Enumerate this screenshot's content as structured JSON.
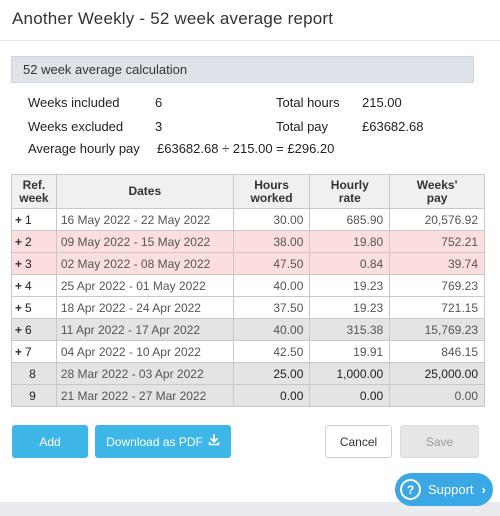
{
  "modal": {
    "title": "Another Weekly - 52 week average report"
  },
  "calculation": {
    "header": "52 week average calculation",
    "weeks_included_label": "Weeks included",
    "weeks_included_value": "6",
    "weeks_excluded_label": "Weeks excluded",
    "weeks_excluded_value": "3",
    "total_hours_label": "Total hours",
    "total_hours_value": "215.00",
    "total_pay_label": "Total pay",
    "total_pay_value": "£63682.68",
    "avg_label": "Average hourly pay",
    "avg_value": "£63682.68 ÷ 215.00 = £296.20"
  },
  "table": {
    "headers": {
      "ref": [
        "Ref.",
        "week"
      ],
      "dates": "Dates",
      "hours": [
        "Hours",
        "worked"
      ],
      "rate": [
        "Hourly",
        "rate"
      ],
      "pay": [
        "Weeks'",
        "pay"
      ]
    },
    "rows": [
      {
        "prefix": "+",
        "ref": "1",
        "dates": "16 May 2022 - 22 May 2022",
        "hours": "30.00",
        "rate": "685.90",
        "pay": "20,576.92",
        "style": "white"
      },
      {
        "prefix": "+",
        "ref": "2",
        "dates": "09 May 2022 - 15 May 2022",
        "hours": "38.00",
        "rate": "19.80",
        "pay": "752.21",
        "style": "pink"
      },
      {
        "prefix": "+",
        "ref": "3",
        "dates": "02 May 2022 - 08 May 2022",
        "hours": "47.50",
        "rate": "0.84",
        "pay": "39.74",
        "style": "pink"
      },
      {
        "prefix": "+",
        "ref": "4",
        "dates": "25 Apr 2022 - 01 May 2022",
        "hours": "40.00",
        "rate": "19.23",
        "pay": "769.23",
        "style": "white"
      },
      {
        "prefix": "+",
        "ref": "5",
        "dates": "18 Apr 2022 - 24 Apr 2022",
        "hours": "37.50",
        "rate": "19.23",
        "pay": "721.15",
        "style": "white"
      },
      {
        "prefix": "+",
        "ref": "6",
        "dates": "11 Apr 2022 - 17 Apr 2022",
        "hours": "40.00",
        "rate": "315.38",
        "pay": "15,769.23",
        "style": "grey"
      },
      {
        "prefix": "+",
        "ref": "7",
        "dates": "04 Apr 2022 - 10 Apr 2022",
        "hours": "42.50",
        "rate": "19.91",
        "pay": "846.15",
        "style": "white"
      },
      {
        "prefix": "",
        "ref": "8",
        "dates": "28 Mar 2022 - 03 Apr 2022",
        "hours": "25.00",
        "rate": "1,000.00",
        "pay": "25,000.00",
        "style": "grey-bold"
      },
      {
        "prefix": "",
        "ref": "9",
        "dates": "21 Mar 2022 - 27 Mar 2022",
        "hours": "0.00",
        "rate": "0.00",
        "pay": "0.00",
        "style": "grey-bold"
      }
    ]
  },
  "buttons": {
    "add": "Add",
    "download_pdf": "Download as PDF",
    "cancel": "Cancel",
    "save": "Save"
  },
  "support": {
    "label": "Support"
  },
  "colors": {
    "primary": "#3fb6e8",
    "excluded_row": "#fbdedd",
    "grey_row": "#e4e4e4"
  }
}
